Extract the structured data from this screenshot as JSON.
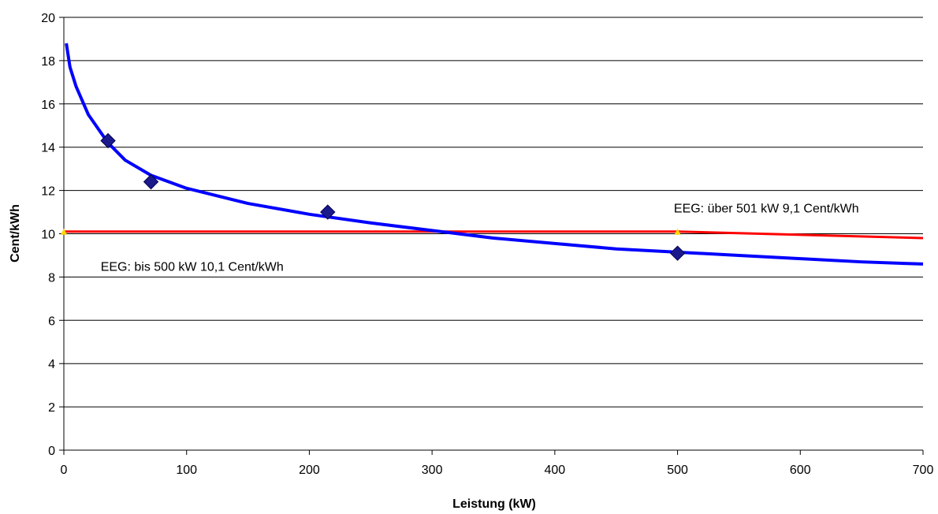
{
  "chart_data": {
    "type": "scatter",
    "title": "",
    "xlabel": "Leistung (kW)",
    "ylabel": "Cent/kWh",
    "xlim": [
      0,
      700
    ],
    "ylim": [
      0,
      20
    ],
    "x_ticks": [
      0,
      100,
      200,
      300,
      400,
      500,
      600,
      700
    ],
    "y_ticks": [
      0,
      2,
      4,
      6,
      8,
      10,
      12,
      14,
      16,
      18,
      20
    ],
    "grid": "horizontal",
    "series": [
      {
        "type": "scatter",
        "marker": "diamond",
        "color": "#1a1a8c",
        "points": [
          {
            "x": 36,
            "y": 14.3
          },
          {
            "x": 71,
            "y": 12.4
          },
          {
            "x": 215,
            "y": 11.0
          },
          {
            "x": 500,
            "y": 9.1
          }
        ]
      },
      {
        "type": "line",
        "color": "#0000ff",
        "points": [
          {
            "x": 2,
            "y": 18.8
          },
          {
            "x": 5,
            "y": 17.7
          },
          {
            "x": 10,
            "y": 16.8
          },
          {
            "x": 20,
            "y": 15.5
          },
          {
            "x": 36,
            "y": 14.2
          },
          {
            "x": 50,
            "y": 13.4
          },
          {
            "x": 71,
            "y": 12.7
          },
          {
            "x": 100,
            "y": 12.1
          },
          {
            "x": 150,
            "y": 11.4
          },
          {
            "x": 200,
            "y": 10.9
          },
          {
            "x": 250,
            "y": 10.5
          },
          {
            "x": 300,
            "y": 10.15
          },
          {
            "x": 350,
            "y": 9.8
          },
          {
            "x": 400,
            "y": 9.55
          },
          {
            "x": 450,
            "y": 9.3
          },
          {
            "x": 500,
            "y": 9.15
          },
          {
            "x": 550,
            "y": 9.0
          },
          {
            "x": 600,
            "y": 8.85
          },
          {
            "x": 650,
            "y": 8.7
          },
          {
            "x": 700,
            "y": 8.6
          }
        ]
      },
      {
        "type": "line",
        "color": "#ff0000",
        "points": [
          {
            "x": 0,
            "y": 10.1
          },
          {
            "x": 500,
            "y": 10.1
          },
          {
            "x": 700,
            "y": 9.8
          }
        ]
      }
    ],
    "annotations": [
      {
        "text": "EEG: bis 500 kW 10,1 Cent/kWh",
        "x": 30,
        "y": 8.5
      },
      {
        "text": "EEG: über 501 kW 9,1 Cent/kWh",
        "x": 497,
        "y": 11.2
      }
    ],
    "colors": {
      "axis": "#000000",
      "grid": "#000000",
      "yellow_marker": "#ffd700"
    }
  }
}
